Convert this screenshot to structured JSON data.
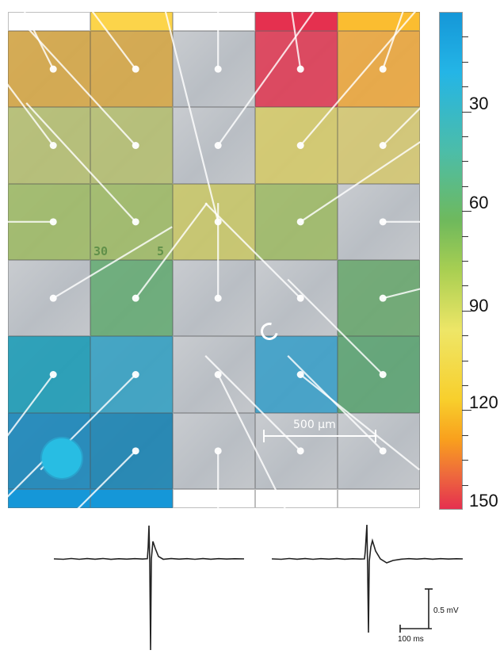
{
  "grid": {
    "rows": 6,
    "cols": 5,
    "cells": [
      [
        "#d8a53a",
        "#d8a53a",
        null,
        "#e2304a",
        "#f0a531"
      ],
      [
        "#b5be6a",
        "#b5be6a",
        null,
        "#d7cb62",
        "#d7c86a"
      ],
      [
        "#9cba5e",
        "#9cba5e",
        "#c9c760",
        "#9cba5e",
        null
      ],
      [
        null,
        "#5ea86c",
        null,
        null,
        "#63a566"
      ],
      [
        "#0f98b4",
        "#2a9ec2",
        null,
        "#2f9cc8",
        "#53a06a"
      ],
      [
        "#0a80b8",
        "#0a7db0",
        null,
        null,
        null
      ]
    ],
    "top_tabs": [
      "#ffffff",
      "#fcd44a",
      "#ffffff",
      "#e5304f",
      "#fbbd30"
    ],
    "bottom_tabs": [
      "#1597d8",
      "#1597d8",
      "#ffffff",
      "#ffffff",
      "#ffffff"
    ]
  },
  "scale_bar": {
    "label": "500 µm"
  },
  "chip_markings": {
    "left": "30",
    "right": "5"
  },
  "colorbar": {
    "labels": [
      "30",
      "60",
      "90",
      "120",
      "150"
    ],
    "min": 0,
    "max": 150
  },
  "traces": {
    "voltage_scale": "0.5 mV",
    "time_scale": "100 ms"
  }
}
